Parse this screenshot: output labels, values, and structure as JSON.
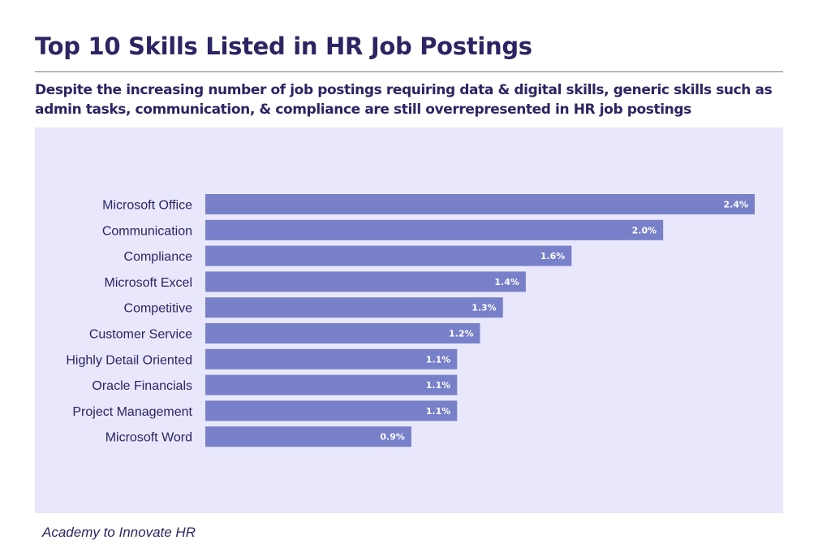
{
  "header": {
    "title": "Top 10 Skills Listed in HR Job Postings",
    "subtitle": "Despite the increasing number of job postings requiring data & digital skills, generic skills such as admin tasks, communication, & compliance are still overrepresented in HR job postings"
  },
  "footer": {
    "source": "Academy to Innovate HR"
  },
  "colors": {
    "bar": "#7880c9",
    "panel_background": "#e9e7fc",
    "text": "#2b2563"
  },
  "chart_data": {
    "type": "bar",
    "orientation": "horizontal",
    "categories": [
      "Microsoft Office",
      "Communication",
      "Compliance",
      "Microsoft Excel",
      "Competitive",
      "Customer Service",
      "Highly Detail Oriented",
      "Oracle Financials",
      "Project Management",
      "Microsoft Word"
    ],
    "values": [
      2.4,
      2.0,
      1.6,
      1.4,
      1.3,
      1.2,
      1.1,
      1.1,
      1.1,
      0.9
    ],
    "value_labels": [
      "2.4%",
      "2.0%",
      "1.6%",
      "1.4%",
      "1.3%",
      "1.2%",
      "1.1%",
      "1.1%",
      "1.1%",
      "0.9%"
    ],
    "title": "Top 10 Skills Listed in HR Job Postings",
    "xlabel": "",
    "ylabel": "",
    "xlim": [
      0,
      2.4
    ],
    "grid": false,
    "legend": "none"
  }
}
